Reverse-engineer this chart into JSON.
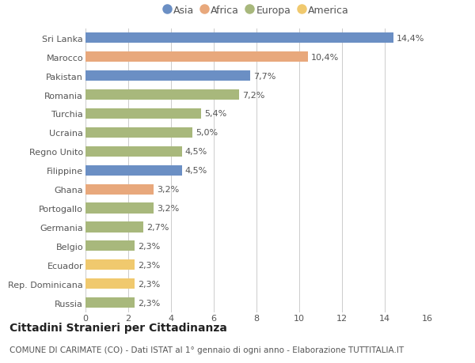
{
  "categories": [
    "Russia",
    "Rep. Dominicana",
    "Ecuador",
    "Belgio",
    "Germania",
    "Portogallo",
    "Ghana",
    "Filippine",
    "Regno Unito",
    "Ucraina",
    "Turchia",
    "Romania",
    "Pakistan",
    "Marocco",
    "Sri Lanka"
  ],
  "values": [
    2.3,
    2.3,
    2.3,
    2.3,
    2.7,
    3.2,
    3.2,
    4.5,
    4.5,
    5.0,
    5.4,
    7.2,
    7.7,
    10.4,
    14.4
  ],
  "labels": [
    "2,3%",
    "2,3%",
    "2,3%",
    "2,3%",
    "2,7%",
    "3,2%",
    "3,2%",
    "4,5%",
    "4,5%",
    "5,0%",
    "5,4%",
    "7,2%",
    "7,7%",
    "10,4%",
    "14,4%"
  ],
  "colors": [
    "#a8b87c",
    "#f0c96e",
    "#f0c96e",
    "#a8b87c",
    "#a8b87c",
    "#a8b87c",
    "#e8a87c",
    "#6b8fc4",
    "#a8b87c",
    "#a8b87c",
    "#a8b87c",
    "#a8b87c",
    "#6b8fc4",
    "#e8a87c",
    "#6b8fc4"
  ],
  "legend_labels": [
    "Asia",
    "Africa",
    "Europa",
    "America"
  ],
  "legend_colors": [
    "#6b8fc4",
    "#e8a87c",
    "#a8b87c",
    "#f0c96e"
  ],
  "title": "Cittadini Stranieri per Cittadinanza",
  "subtitle": "COMUNE DI CARIMATE (CO) - Dati ISTAT al 1° gennaio di ogni anno - Elaborazione TUTTITALIA.IT",
  "xlim": [
    0,
    16
  ],
  "xticks": [
    0,
    2,
    4,
    6,
    8,
    10,
    12,
    14,
    16
  ],
  "bg_color": "#ffffff",
  "bar_height": 0.55,
  "label_fontsize": 8.0,
  "tick_fontsize": 8.0,
  "title_fontsize": 10,
  "subtitle_fontsize": 7.5
}
